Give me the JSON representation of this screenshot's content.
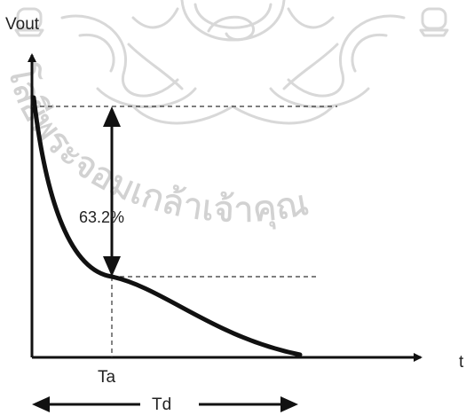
{
  "labels": {
    "y_axis": "Vout",
    "x_axis": "t",
    "percent": "63.2%",
    "ta": "Ta",
    "td": "Td"
  },
  "watermark": {
    "text": "โลยีพระจอมเกล้าเจ้าคุณ",
    "color": "#d2d2d2",
    "emblem": "temple-emblem-watermark"
  },
  "colors": {
    "curve": "#111111",
    "axis": "#111111",
    "guide": "#333333"
  }
}
